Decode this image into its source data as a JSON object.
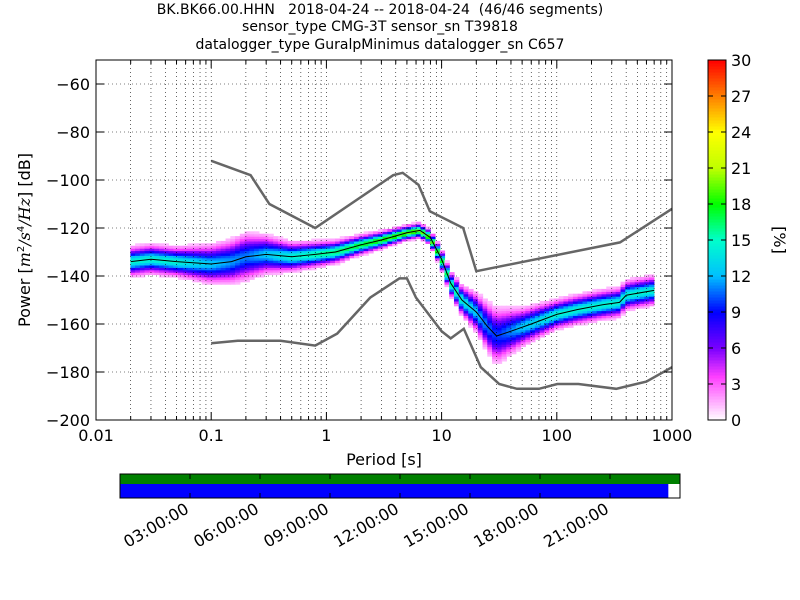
{
  "title_lines": [
    "BK.BK66.00.HHN   2018-04-24 -- 2018-04-24  (46/46 segments)",
    "sensor_type CMG-3T sensor_sn T39818",
    "datalogger_type GuralpMinimus datalogger_sn C657"
  ],
  "chart_data": {
    "type": "heatmap",
    "xscale": "log",
    "xlim": [
      0.01,
      1000
    ],
    "ylim": [
      -200,
      -50
    ],
    "xlabel": "Period [s]",
    "ylabel_prefix": "Power [",
    "ylabel_suffix": "] [dB]",
    "xticks": [
      {
        "v": 0.01,
        "label": "0.01"
      },
      {
        "v": 0.1,
        "label": "0.1"
      },
      {
        "v": 1,
        "label": "1"
      },
      {
        "v": 10,
        "label": "10"
      },
      {
        "v": 100,
        "label": "100"
      },
      {
        "v": 1000,
        "label": "1000"
      }
    ],
    "yticks": [
      {
        "v": -60,
        "label": "−60"
      },
      {
        "v": -80,
        "label": "−80"
      },
      {
        "v": -100,
        "label": "−100"
      },
      {
        "v": -120,
        "label": "−120"
      },
      {
        "v": -140,
        "label": "−140"
      },
      {
        "v": -160,
        "label": "−160"
      },
      {
        "v": -180,
        "label": "−180"
      },
      {
        "v": -200,
        "label": "−200"
      }
    ],
    "grid": "dotted",
    "colorbar": {
      "label": "[%]",
      "range": [
        0,
        30
      ],
      "ticks": [
        {
          "v": 0,
          "label": "0"
        },
        {
          "v": 3,
          "label": "3"
        },
        {
          "v": 6,
          "label": "6"
        },
        {
          "v": 9,
          "label": "9"
        },
        {
          "v": 12,
          "label": "12"
        },
        {
          "v": 15,
          "label": "15"
        },
        {
          "v": 18,
          "label": "18"
        },
        {
          "v": 21,
          "label": "21"
        },
        {
          "v": 24,
          "label": "24"
        },
        {
          "v": 27,
          "label": "27"
        },
        {
          "v": 30,
          "label": "30"
        }
      ]
    },
    "nhnm": [
      [
        0.1,
        -92
      ],
      [
        0.22,
        -98
      ],
      [
        0.32,
        -110
      ],
      [
        0.8,
        -120
      ],
      [
        3.8,
        -98
      ],
      [
        4.6,
        -97
      ],
      [
        6.3,
        -102
      ],
      [
        7.9,
        -113
      ],
      [
        15.4,
        -120
      ],
      [
        20,
        -138
      ],
      [
        354,
        -126
      ],
      [
        1000,
        -112
      ]
    ],
    "nlnm": [
      [
        0.1,
        -168
      ],
      [
        0.17,
        -167
      ],
      [
        0.4,
        -167
      ],
      [
        0.8,
        -169
      ],
      [
        1.24,
        -164
      ],
      [
        2.4,
        -149
      ],
      [
        4.3,
        -141
      ],
      [
        5,
        -141
      ],
      [
        6,
        -149
      ],
      [
        10,
        -163
      ],
      [
        12,
        -166
      ],
      [
        15.6,
        -162
      ],
      [
        21.9,
        -178
      ],
      [
        31.6,
        -185
      ],
      [
        45,
        -187
      ],
      [
        70,
        -187
      ],
      [
        101,
        -185
      ],
      [
        154,
        -185
      ],
      [
        328,
        -187
      ],
      [
        600,
        -184
      ],
      [
        1000,
        -178
      ]
    ],
    "mode_curve": [
      [
        0.02,
        -134
      ],
      [
        0.03,
        -133
      ],
      [
        0.05,
        -134
      ],
      [
        0.1,
        -135
      ],
      [
        0.15,
        -134
      ],
      [
        0.2,
        -132
      ],
      [
        0.3,
        -131
      ],
      [
        0.5,
        -132
      ],
      [
        0.8,
        -131
      ],
      [
        1.2,
        -130
      ],
      [
        2,
        -127
      ],
      [
        3,
        -125
      ],
      [
        5,
        -122
      ],
      [
        6.5,
        -121
      ],
      [
        8,
        -124
      ],
      [
        10,
        -133
      ],
      [
        12,
        -143
      ],
      [
        15,
        -150
      ],
      [
        20,
        -155
      ],
      [
        25,
        -161
      ],
      [
        30,
        -165
      ],
      [
        40,
        -163
      ],
      [
        60,
        -160
      ],
      [
        100,
        -156
      ],
      [
        150,
        -154
      ],
      [
        250,
        -152
      ],
      [
        350,
        -151
      ],
      [
        400,
        -148
      ],
      [
        700,
        -146
      ]
    ],
    "spread_curve": [
      [
        0.02,
        3
      ],
      [
        0.05,
        3
      ],
      [
        0.1,
        4
      ],
      [
        0.2,
        5
      ],
      [
        0.3,
        4
      ],
      [
        0.5,
        3
      ],
      [
        1,
        2.5
      ],
      [
        2,
        2
      ],
      [
        5,
        1.5
      ],
      [
        8,
        1.5
      ],
      [
        10,
        2
      ],
      [
        15,
        3
      ],
      [
        20,
        4
      ],
      [
        30,
        6
      ],
      [
        50,
        4
      ],
      [
        100,
        3
      ],
      [
        300,
        3
      ],
      [
        700,
        3
      ]
    ],
    "time_axis": {
      "tick_labels": [
        "03:00:00",
        "06:00:00",
        "09:00:00",
        "12:00:00",
        "15:00:00",
        "18:00:00",
        "21:00:00"
      ],
      "tick_hours": [
        3,
        6,
        9,
        12,
        15,
        18,
        21
      ],
      "range_hours": [
        0,
        24
      ],
      "data_coverage_hours": [
        0,
        24
      ],
      "psd_coverage_hours": [
        0,
        23.5
      ]
    }
  },
  "colors": {
    "nm_line": "#666666",
    "mode_line": "#000000",
    "data_bar": "#008000",
    "psd_bar": "#0000ff"
  }
}
